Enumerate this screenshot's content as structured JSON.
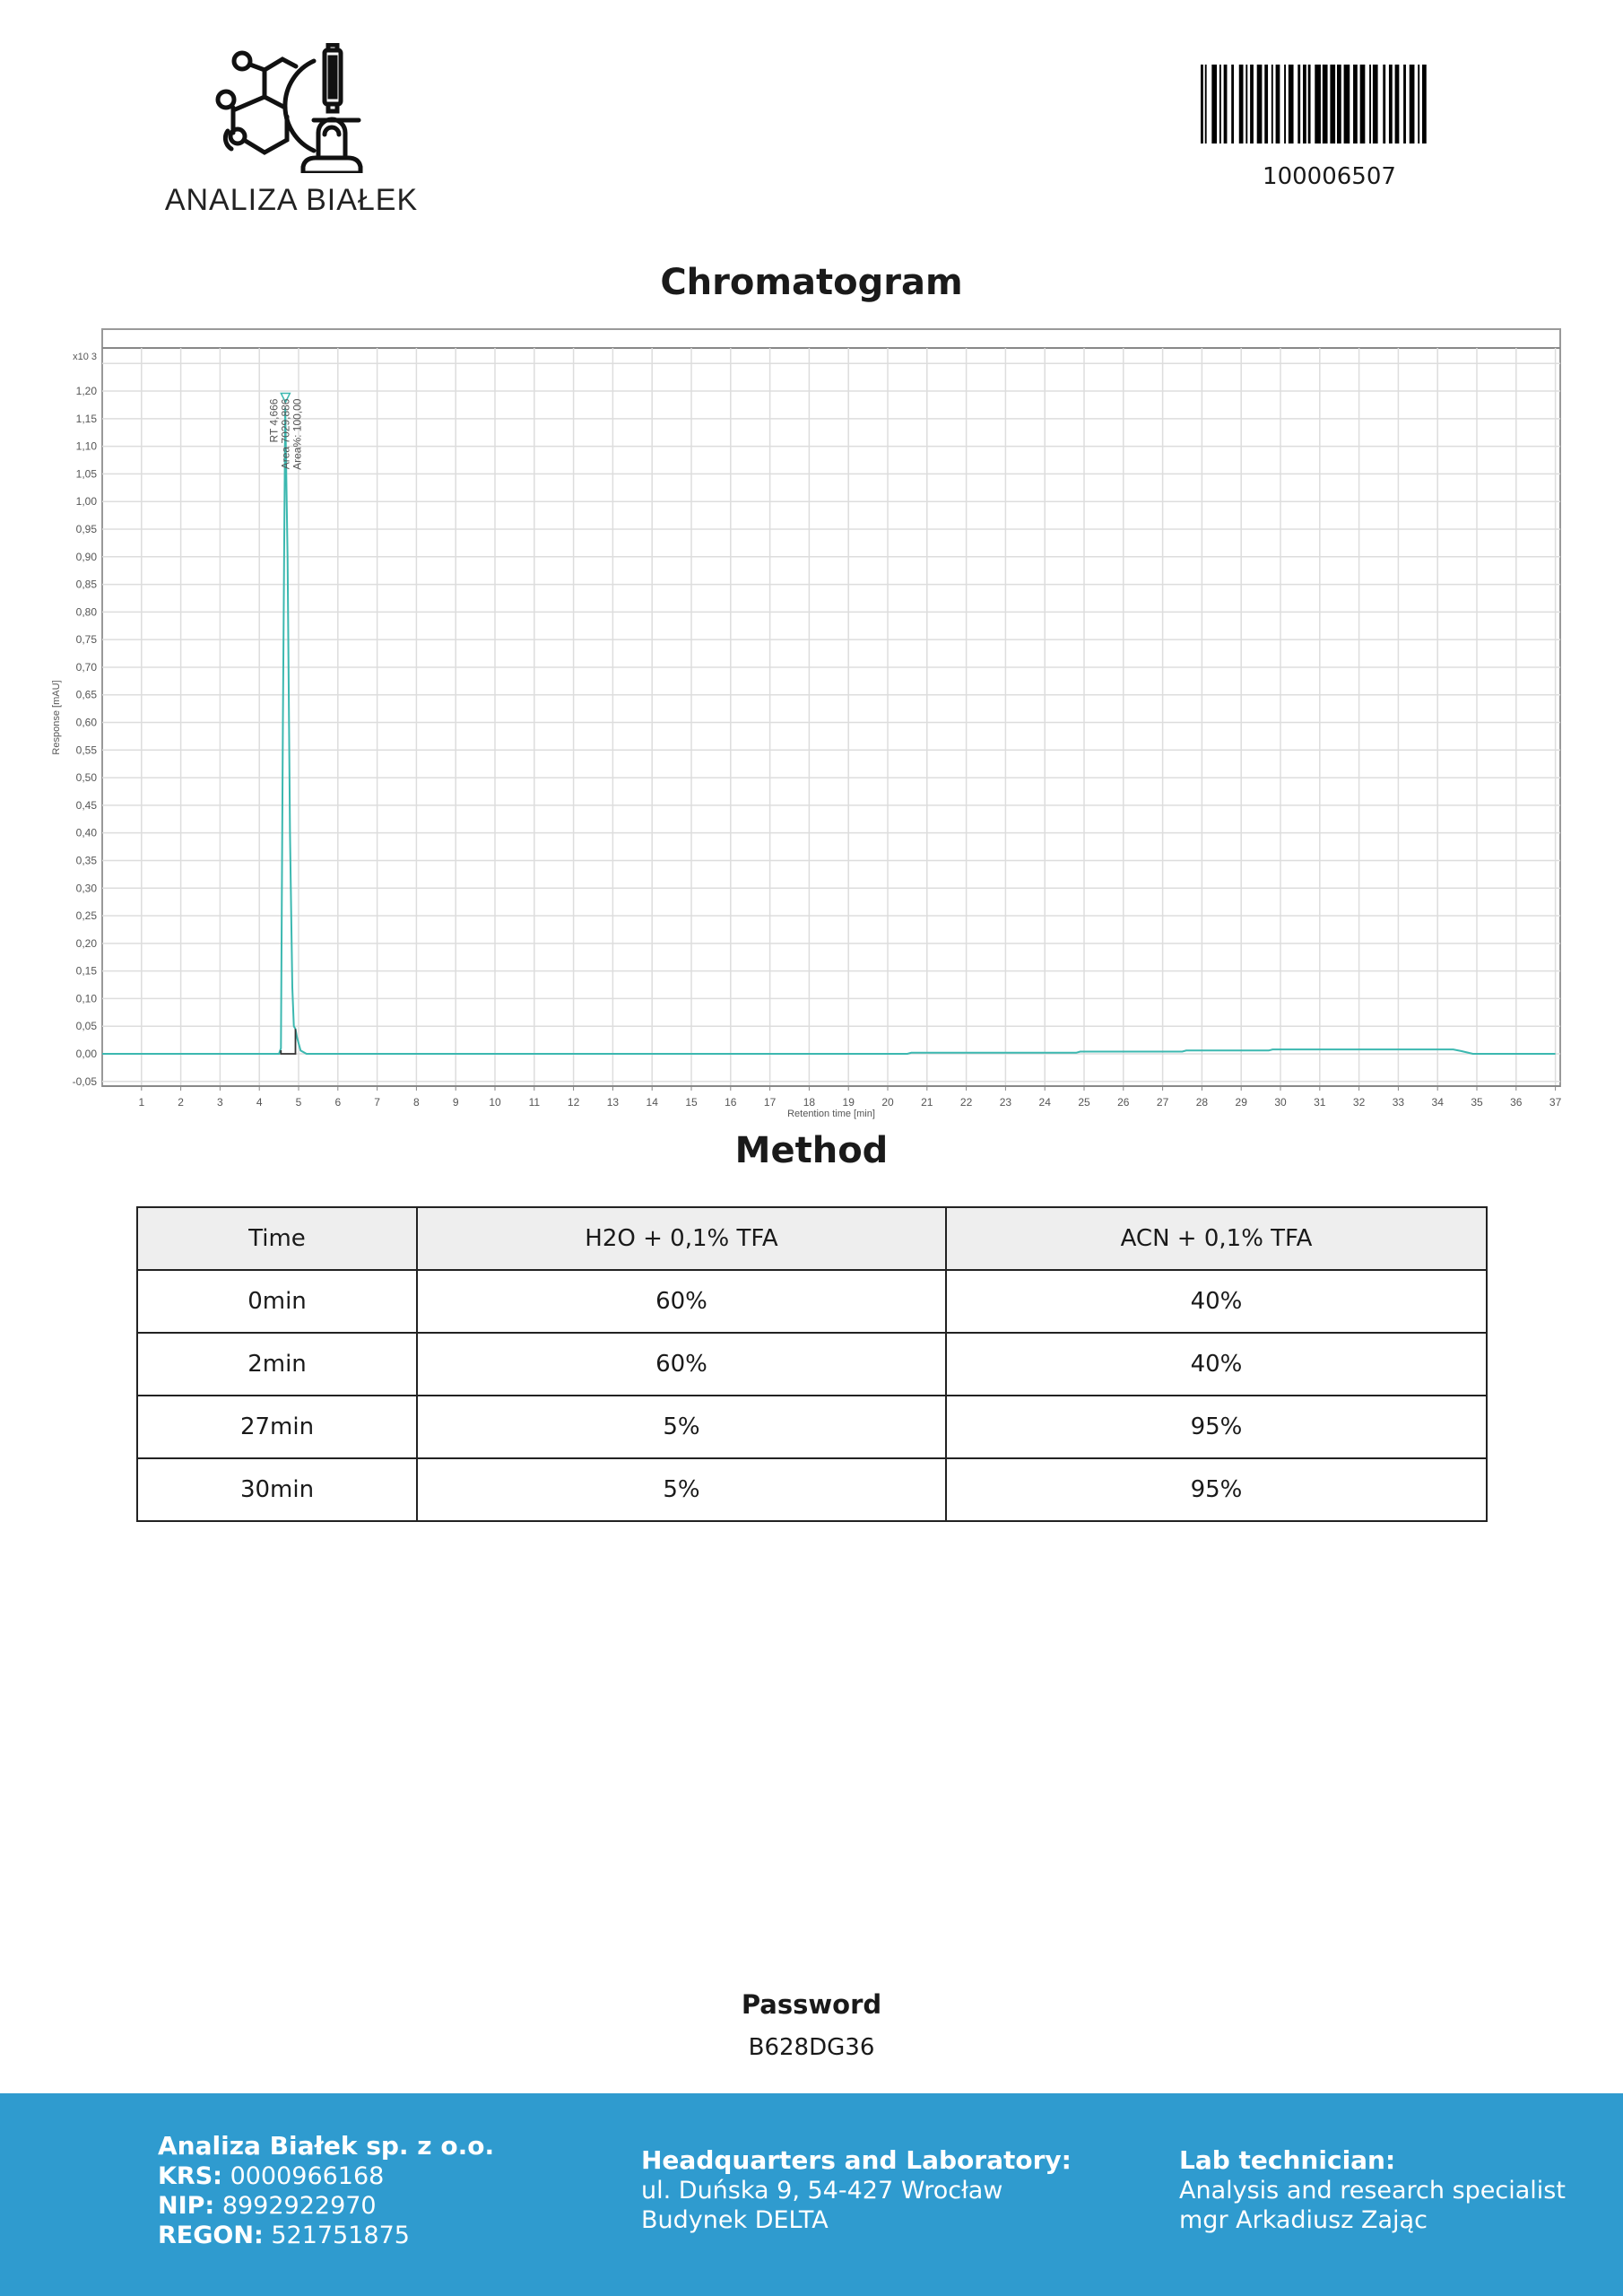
{
  "header": {
    "logo_text": "ANALIZA BIAŁEK",
    "barcode_number": "100006507"
  },
  "chromatogram": {
    "title": "Chromatogram"
  },
  "chart_data": {
    "type": "line",
    "xlabel": "Retention time [min]",
    "ylabel": "Response [mAU]",
    "y_multiplier": "x10 3",
    "xlim": [
      0,
      37
    ],
    "ylim": [
      -0.058,
      1.278
    ],
    "grid": true,
    "x_ticks": [
      "1",
      "2",
      "3",
      "4",
      "5",
      "6",
      "7",
      "8",
      "9",
      "10",
      "11",
      "12",
      "13",
      "14",
      "15",
      "16",
      "17",
      "18",
      "19",
      "20",
      "21",
      "22",
      "23",
      "24",
      "25",
      "26",
      "27",
      "28",
      "29",
      "30",
      "31",
      "32",
      "33",
      "34",
      "35",
      "36",
      "37"
    ],
    "y_ticks": [
      "-0,05",
      "0,00",
      "0,05",
      "0,10",
      "0,15",
      "0,20",
      "0,25",
      "0,30",
      "0,35",
      "0,40",
      "0,45",
      "0,50",
      "0,55",
      "0,60",
      "0,65",
      "0,70",
      "0,75",
      "0,80",
      "0,85",
      "0,90",
      "0,95",
      "1,00",
      "1,05",
      "1,10",
      "1,15",
      "1,20"
    ],
    "series": [
      {
        "color": "#3cb8b0",
        "x": [
          0,
          4.5,
          4.55,
          4.6,
          4.66,
          4.72,
          4.78,
          4.84,
          4.88,
          4.92,
          4.96,
          5.05,
          5.2,
          20.5,
          20.6,
          24.8,
          24.9,
          27.5,
          27.6,
          29.7,
          29.8,
          34.4,
          34.6,
          34.9,
          37
        ],
        "y": [
          0,
          0,
          0.01,
          0.6,
          1.17,
          0.9,
          0.4,
          0.12,
          0.05,
          0.045,
          0.03,
          0.006,
          0,
          0,
          0.002,
          0.002,
          0.004,
          0.004,
          0.006,
          0.006,
          0.008,
          0.008,
          0.005,
          0,
          0
        ]
      }
    ],
    "peak": {
      "rt": 4.666,
      "response": 1.17,
      "labels": [
        "RT 4,666",
        "Area 7029,886",
        "Area%: 100,00"
      ],
      "baseline_start": 4.55,
      "baseline_end": 4.92,
      "baseline_end_response": 0.045
    }
  },
  "method": {
    "title": "Method",
    "headers": [
      "Time",
      "H2O + 0,1% TFA",
      "ACN + 0,1% TFA"
    ],
    "rows": [
      [
        "0min",
        "60%",
        "40%"
      ],
      [
        "2min",
        "60%",
        "40%"
      ],
      [
        "27min",
        "5%",
        "95%"
      ],
      [
        "30min",
        "5%",
        "95%"
      ]
    ]
  },
  "password": {
    "label": "Password",
    "value": "B628DG36"
  },
  "footer": {
    "color": "#2f9bcf",
    "company": "Analiza Białek sp. z o.o.",
    "krs_label": "KRS:",
    "krs": "0000966168",
    "nip_label": "NIP:",
    "nip": "8992922970",
    "regon_label": "REGON:",
    "regon": "521751875",
    "hq_title": "Headquarters and Laboratory:",
    "hq_line1": "ul. Duńska 9, 54-427 Wrocław",
    "hq_line2": "Budynek DELTA",
    "tech_title": "Lab technician:",
    "tech_line1": "Analysis and research specialist",
    "tech_line2": "mgr Arkadiusz Zając"
  }
}
